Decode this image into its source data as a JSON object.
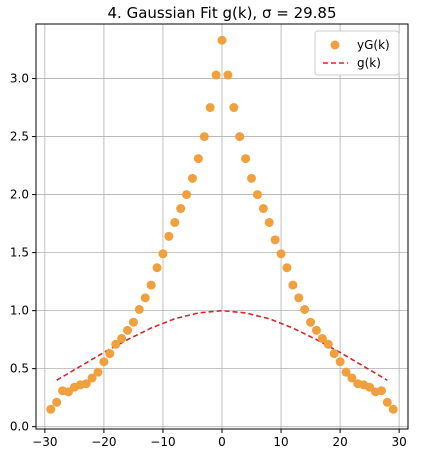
{
  "chart_data": {
    "type": "scatter",
    "title": "4. Gaussian Fit g(k), σ = 29.85",
    "xlabel": "",
    "ylabel": "",
    "xlim": [
      -31.5,
      31.5
    ],
    "ylim": [
      -0.02,
      3.47
    ],
    "xticks": [
      -30,
      -20,
      -10,
      0,
      10,
      20,
      30
    ],
    "yticks": [
      0.0,
      0.5,
      1.0,
      1.5,
      2.0,
      2.5,
      3.0
    ],
    "xtick_labels": [
      "−30",
      "−20",
      "−10",
      "0",
      "10",
      "20",
      "30"
    ],
    "ytick_labels": [
      "0.0",
      "0.5",
      "1.0",
      "1.5",
      "2.0",
      "2.5",
      "3.0"
    ],
    "grid": true,
    "legend_position": "top-right",
    "series": [
      {
        "name": "yG(k)",
        "kind": "scatter",
        "color": "#f0a03c",
        "x": [
          -29,
          -28,
          -27,
          -26,
          -25,
          -24,
          -23,
          -22,
          -21,
          -20,
          -19,
          -18,
          -17,
          -16,
          -15,
          -14,
          -13,
          -12,
          -11,
          -10,
          -9,
          -8,
          -7,
          -6,
          -5,
          -4,
          -3,
          -2,
          -1,
          0,
          1,
          2,
          3,
          4,
          5,
          6,
          7,
          8,
          9,
          10,
          11,
          12,
          13,
          14,
          15,
          16,
          17,
          18,
          19,
          20,
          21,
          22,
          23,
          24,
          25,
          26,
          27,
          28,
          29
        ],
        "y": [
          0.15,
          0.21,
          0.31,
          0.3,
          0.34,
          0.36,
          0.37,
          0.42,
          0.47,
          0.56,
          0.63,
          0.71,
          0.76,
          0.83,
          0.9,
          1.01,
          1.11,
          1.22,
          1.37,
          1.49,
          1.64,
          1.76,
          1.88,
          2.0,
          2.14,
          2.31,
          2.5,
          2.75,
          3.03,
          3.33,
          3.03,
          2.75,
          2.5,
          2.31,
          2.14,
          2.0,
          1.88,
          1.76,
          1.61,
          1.49,
          1.37,
          1.22,
          1.11,
          1.01,
          0.9,
          0.83,
          0.76,
          0.71,
          0.63,
          0.56,
          0.47,
          0.42,
          0.37,
          0.36,
          0.34,
          0.3,
          0.31,
          0.21,
          0.15
        ]
      },
      {
        "name": "g(k)",
        "kind": "line",
        "color": "#d62728",
        "sigma": 29.85,
        "x": [
          -28,
          -24,
          -20,
          -16,
          -12,
          -8,
          -4,
          0,
          4,
          8,
          12,
          16,
          20,
          24,
          28
        ],
        "y": [
          0.4,
          0.52,
          0.64,
          0.75,
          0.85,
          0.93,
          0.98,
          1.0,
          0.98,
          0.93,
          0.85,
          0.75,
          0.64,
          0.52,
          0.4
        ]
      }
    ]
  }
}
